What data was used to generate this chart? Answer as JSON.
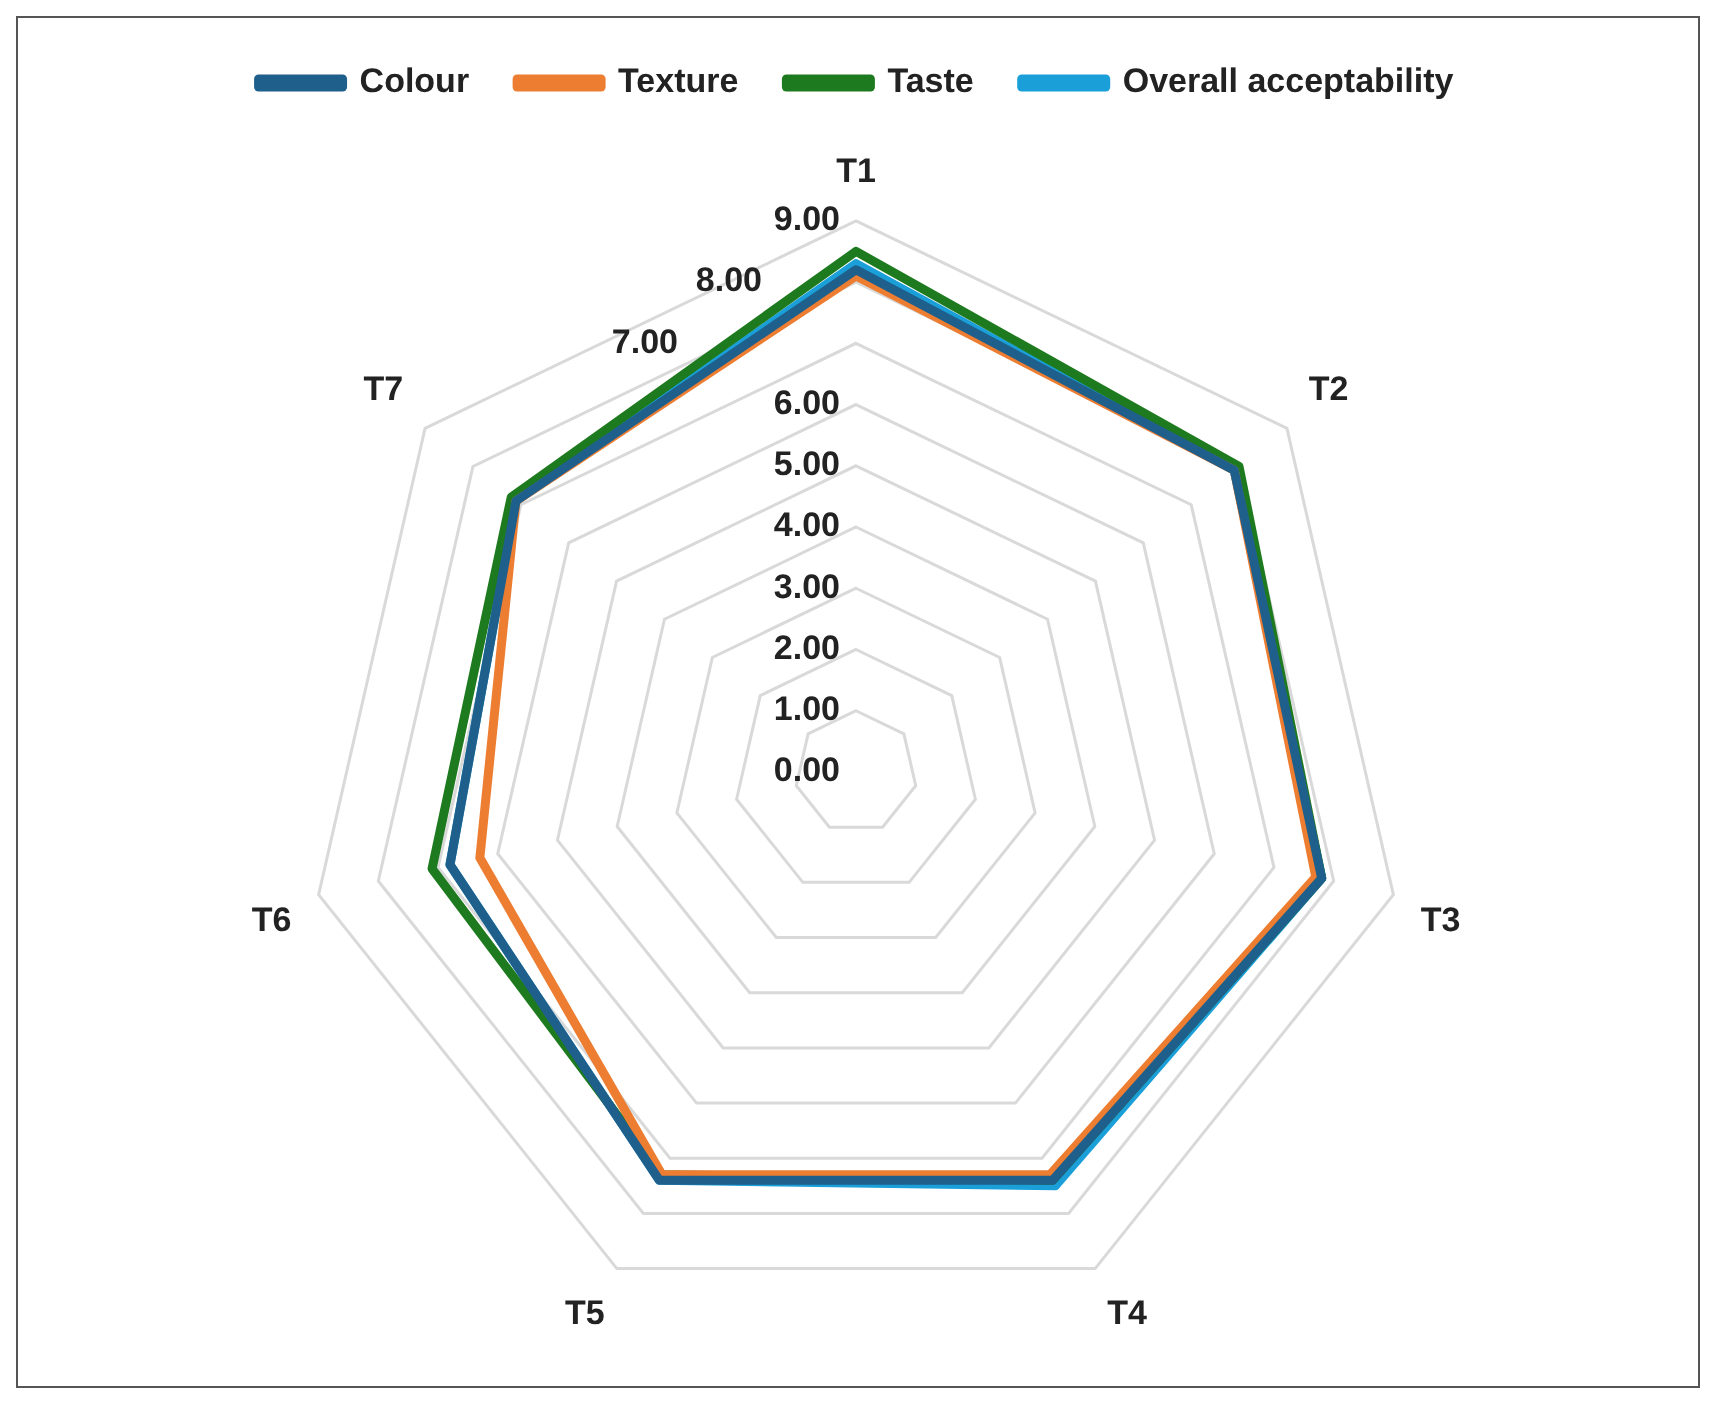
{
  "chart_data": {
    "type": "radar",
    "categories": [
      "T1",
      "T2",
      "T3",
      "T4",
      "T5",
      "T6",
      "T7"
    ],
    "series": [
      {
        "name": "Colour",
        "color": "#1f5f8b",
        "values": [
          8.2,
          7.9,
          7.8,
          7.4,
          7.4,
          6.8,
          7.1
        ]
      },
      {
        "name": "Texture",
        "color": "#ed7d31",
        "values": [
          8.1,
          7.9,
          7.7,
          7.3,
          7.3,
          6.3,
          7.1
        ]
      },
      {
        "name": "Taste",
        "color": "#1e7a1e",
        "values": [
          8.5,
          8.0,
          7.8,
          7.4,
          7.3,
          7.1,
          7.2
        ]
      },
      {
        "name": "Overall acceptability",
        "color": "#1a9fd8",
        "values": [
          8.3,
          7.9,
          7.8,
          7.5,
          7.4,
          6.8,
          7.1
        ]
      }
    ],
    "ylim": [
      0,
      9
    ],
    "yticks": [
      {
        "value": 0,
        "label": "0.00"
      },
      {
        "value": 1,
        "label": "1.00"
      },
      {
        "value": 2,
        "label": "2.00"
      },
      {
        "value": 3,
        "label": "3.00"
      },
      {
        "value": 4,
        "label": "4.00"
      },
      {
        "value": 5,
        "label": "5.00"
      },
      {
        "value": 6,
        "label": "6.00"
      },
      {
        "value": 7,
        "label": "7.00"
      },
      {
        "value": 8,
        "label": "8.00"
      },
      {
        "value": 9,
        "label": "9.00"
      }
    ],
    "grid": true,
    "legend": "top",
    "marker": "none",
    "line_style": "solid"
  }
}
